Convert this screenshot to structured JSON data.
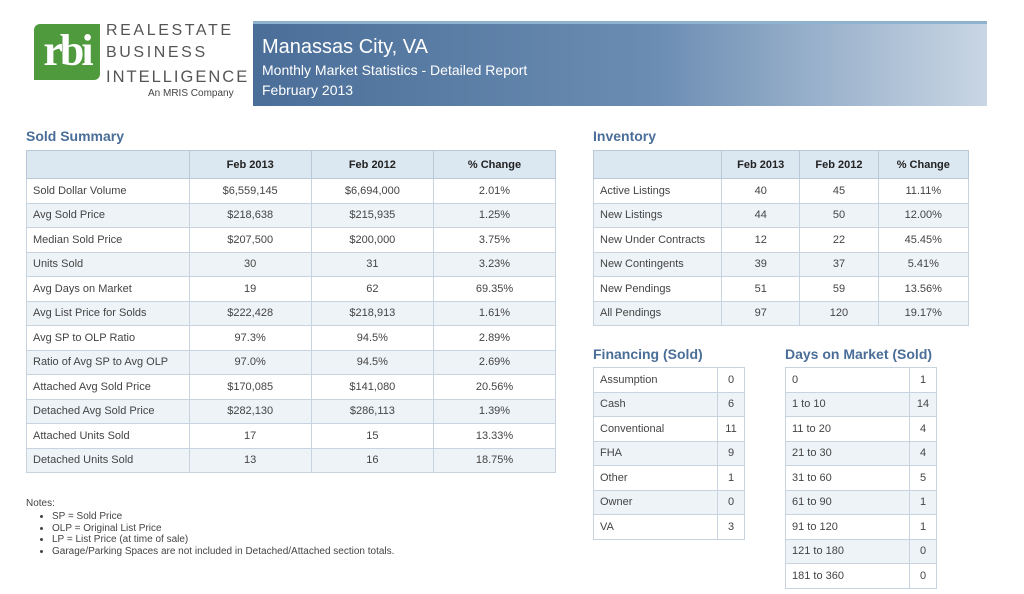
{
  "logo": {
    "mark": "rbi",
    "line1": "REALESTATE",
    "line2": "BUSINESS",
    "line3": "INTELLIGENCE",
    "sub": "An MRIS Company"
  },
  "header": {
    "title": "Manassas City, VA",
    "subtitle": "Monthly Market Statistics - Detailed Report",
    "date": "February 2013"
  },
  "sold_summary": {
    "title": "Sold Summary",
    "columns": [
      "Feb 2013",
      "Feb 2012",
      "% Change"
    ],
    "rows": [
      {
        "label": "Sold Dollar Volume",
        "v1": "$6,559,145",
        "v2": "$6,694,000",
        "v3": "2.01%"
      },
      {
        "label": "Avg Sold Price",
        "v1": "$218,638",
        "v2": "$215,935",
        "v3": "1.25%"
      },
      {
        "label": "Median Sold Price",
        "v1": "$207,500",
        "v2": "$200,000",
        "v3": "3.75%"
      },
      {
        "label": "Units Sold",
        "v1": "30",
        "v2": "31",
        "v3": "3.23%"
      },
      {
        "label": "Avg Days on Market",
        "v1": "19",
        "v2": "62",
        "v3": "69.35%"
      },
      {
        "label": "Avg List Price for Solds",
        "v1": "$222,428",
        "v2": "$218,913",
        "v3": "1.61%"
      },
      {
        "label": "Avg SP to OLP Ratio",
        "v1": "97.3%",
        "v2": "94.5%",
        "v3": "2.89%"
      },
      {
        "label": "Ratio of Avg SP to Avg OLP",
        "v1": "97.0%",
        "v2": "94.5%",
        "v3": "2.69%"
      },
      {
        "label": "Attached Avg Sold Price",
        "v1": "$170,085",
        "v2": "$141,080",
        "v3": "20.56%"
      },
      {
        "label": "Detached Avg Sold Price",
        "v1": "$282,130",
        "v2": "$286,113",
        "v3": "1.39%"
      },
      {
        "label": "Attached Units Sold",
        "v1": "17",
        "v2": "15",
        "v3": "13.33%"
      },
      {
        "label": "Detached Units Sold",
        "v1": "13",
        "v2": "16",
        "v3": "18.75%"
      }
    ]
  },
  "notes": {
    "title": "Notes:",
    "items": [
      "SP = Sold Price",
      "OLP = Original List Price",
      "LP = List Price (at time of sale)",
      "Garage/Parking Spaces are not included in Detached/Attached section totals."
    ]
  },
  "inventory": {
    "title": "Inventory",
    "columns": [
      "Feb 2013",
      "Feb 2012",
      "% Change"
    ],
    "rows": [
      {
        "label": "Active Listings",
        "v1": "40",
        "v2": "45",
        "v3": "11.11%"
      },
      {
        "label": "New Listings",
        "v1": "44",
        "v2": "50",
        "v3": "12.00%"
      },
      {
        "label": "New Under Contracts",
        "v1": "12",
        "v2": "22",
        "v3": "45.45%"
      },
      {
        "label": "New Contingents",
        "v1": "39",
        "v2": "37",
        "v3": "5.41%"
      },
      {
        "label": "New Pendings",
        "v1": "51",
        "v2": "59",
        "v3": "13.56%"
      },
      {
        "label": "All Pendings",
        "v1": "97",
        "v2": "120",
        "v3": "19.17%"
      }
    ]
  },
  "financing": {
    "title": "Financing (Sold)",
    "rows": [
      {
        "label": "Assumption",
        "value": "0"
      },
      {
        "label": "Cash",
        "value": "6"
      },
      {
        "label": "Conventional",
        "value": "11"
      },
      {
        "label": "FHA",
        "value": "9"
      },
      {
        "label": "Other",
        "value": "1"
      },
      {
        "label": "Owner",
        "value": "0"
      },
      {
        "label": "VA",
        "value": "3"
      }
    ]
  },
  "days_on_market": {
    "title": "Days on Market (Sold)",
    "rows": [
      {
        "label": "0",
        "value": "1"
      },
      {
        "label": "1 to 10",
        "value": "14"
      },
      {
        "label": "11 to 20",
        "value": "4"
      },
      {
        "label": "21 to 30",
        "value": "4"
      },
      {
        "label": "31 to 60",
        "value": "5"
      },
      {
        "label": "61 to 90",
        "value": "1"
      },
      {
        "label": "91 to 120",
        "value": "1"
      },
      {
        "label": "121 to 180",
        "value": "0"
      },
      {
        "label": "181 to 360",
        "value": "0"
      }
    ]
  }
}
